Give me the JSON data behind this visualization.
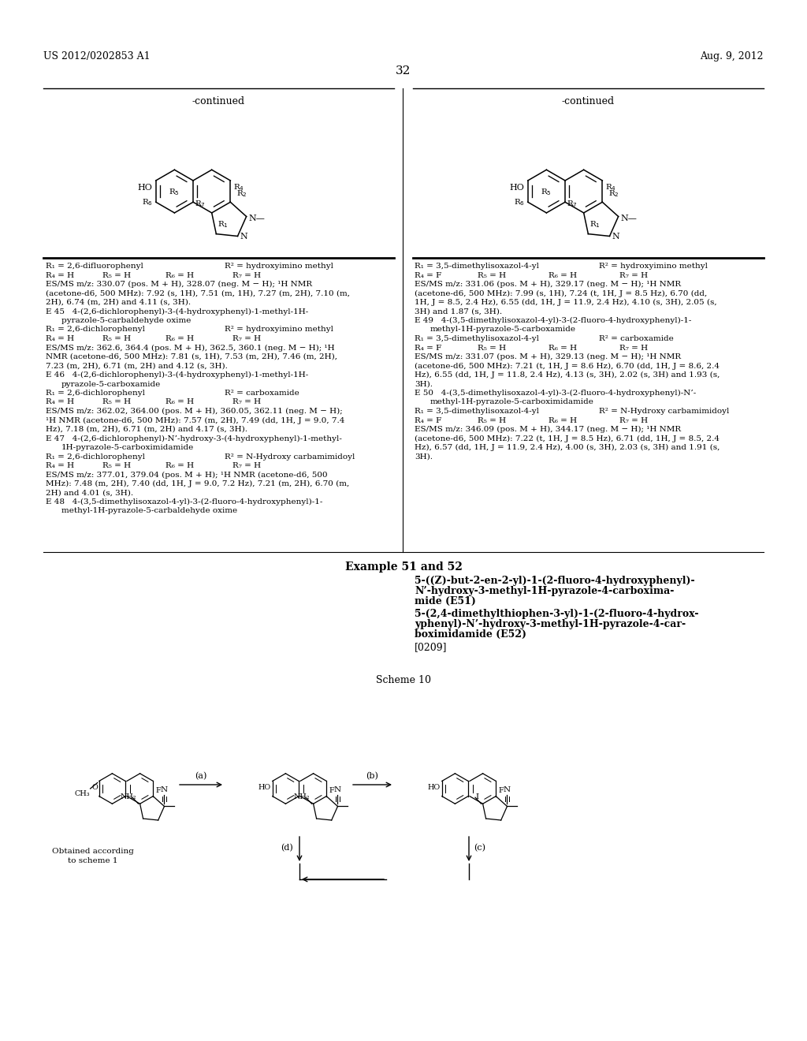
{
  "page_header_left": "US 2012/0202853 A1",
  "page_header_right": "Aug. 9, 2012",
  "page_number": "32",
  "bg": "#ffffff",
  "tc": "#000000"
}
